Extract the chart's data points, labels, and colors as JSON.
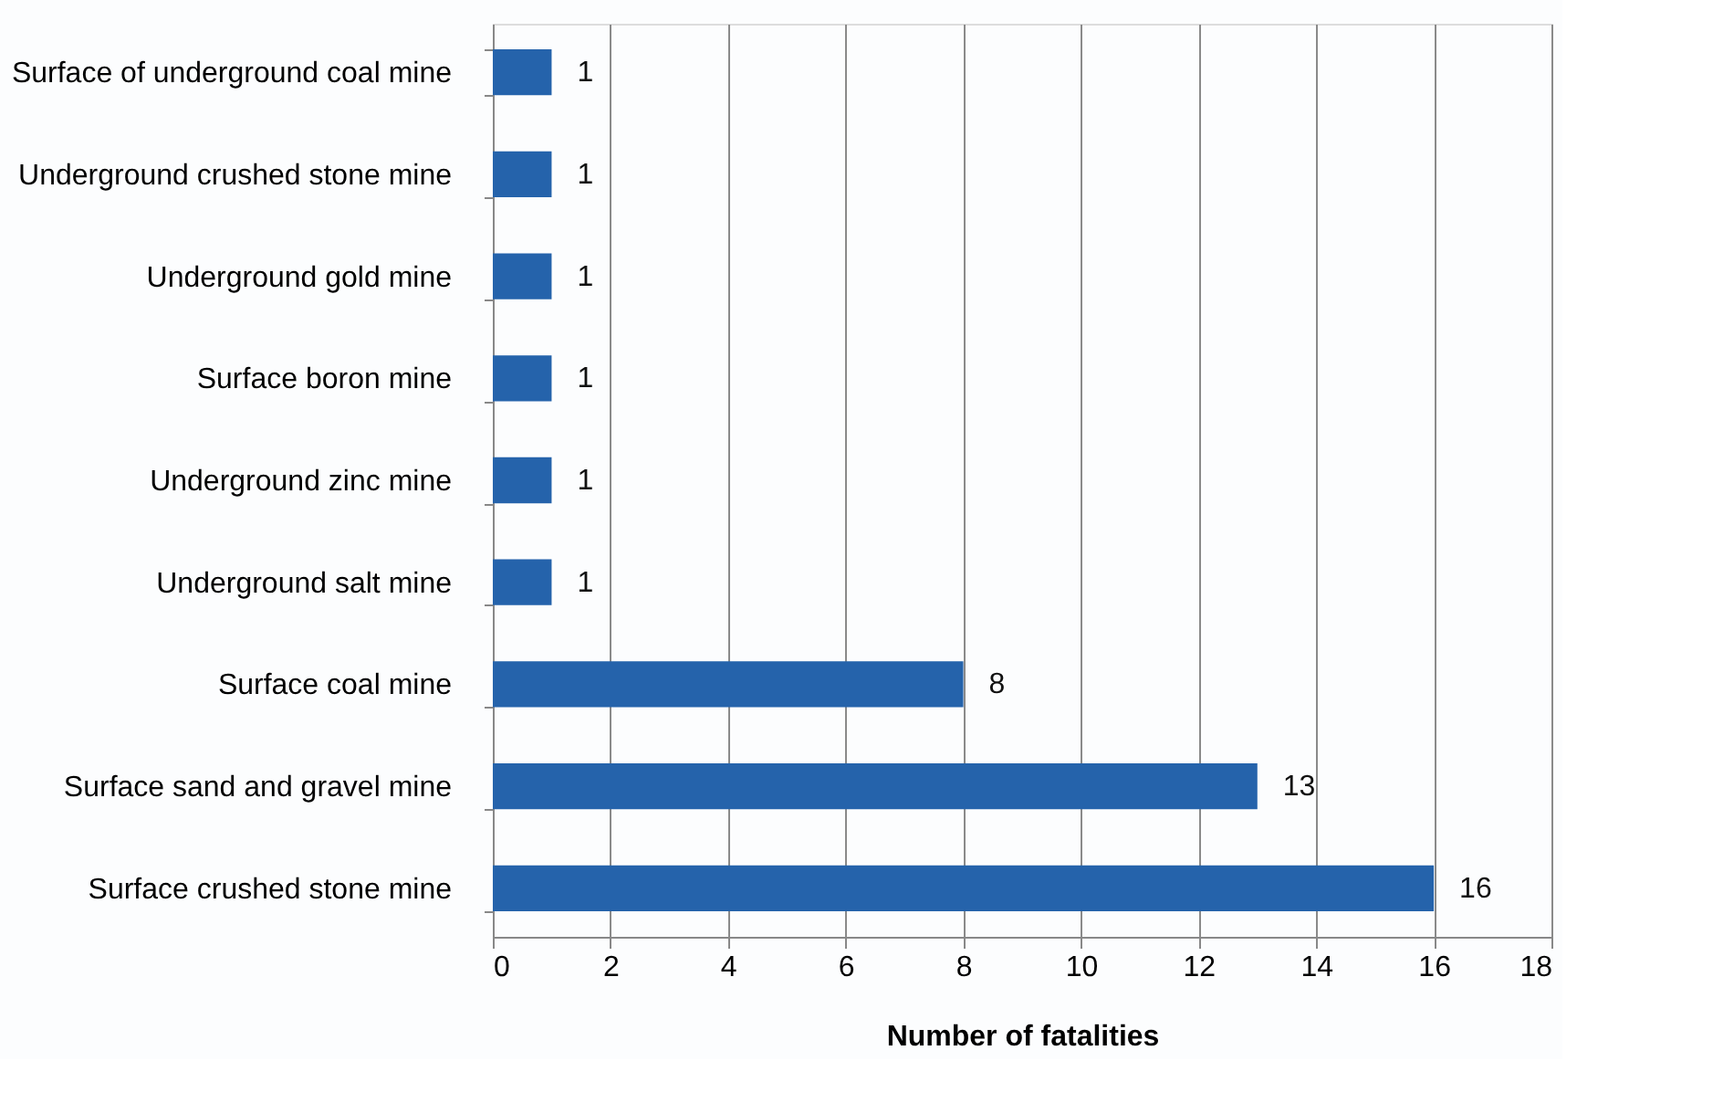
{
  "chart_data": {
    "type": "bar",
    "orientation": "horizontal",
    "xlabel": "Number of fatalities",
    "categories": [
      "Surface of underground coal mine",
      "Underground crushed stone mine",
      "Underground gold mine",
      "Surface boron mine",
      "Underground zinc mine",
      "Underground salt mine",
      "Surface coal mine",
      "Surface sand and gravel mine",
      "Surface crushed stone mine"
    ],
    "values": [
      1,
      1,
      1,
      1,
      1,
      1,
      8,
      13,
      16
    ],
    "color": "#2563ab",
    "xlim": [
      0,
      18
    ],
    "xticks": [
      0,
      2,
      4,
      6,
      8,
      10,
      12,
      14,
      16,
      18
    ],
    "grid": "x",
    "data_labels": true
  }
}
